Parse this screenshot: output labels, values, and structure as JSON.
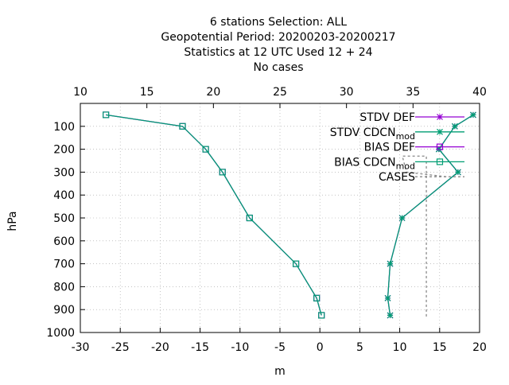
{
  "chart_data": {
    "type": "line",
    "title_lines": [
      "6 stations Selection: ALL",
      "Geopotential  Period: 20200203-20200217",
      "Statistics at 12 UTC  Used  12 + 24",
      "No cases"
    ],
    "xlabel": "m",
    "ylabel": "hPa",
    "x_bottom": {
      "lim": [
        -30,
        20
      ],
      "ticks": [
        -30,
        -25,
        -20,
        -15,
        -10,
        -5,
        0,
        5,
        10,
        15,
        20
      ]
    },
    "x_top": {
      "lim": [
        10,
        40
      ],
      "ticks": [
        10,
        15,
        20,
        25,
        30,
        35,
        40
      ]
    },
    "y": {
      "lim": [
        0,
        1000
      ],
      "reversed": true,
      "ticks": [
        100,
        200,
        300,
        400,
        500,
        600,
        700,
        800,
        900,
        1000
      ]
    },
    "grid": true,
    "legend_position": "top-right",
    "levels": [
      50,
      100,
      200,
      300,
      500,
      700,
      850,
      925
    ],
    "series": [
      {
        "name": "STDV DEF",
        "marker": "star",
        "color": "#9400d3",
        "values": [
          19.2,
          16.9,
          14.9,
          17.3,
          10.3,
          8.8,
          8.5,
          8.8
        ]
      },
      {
        "name": "STDV CDCN_mod",
        "marker": "star",
        "color": "#009e73",
        "values": [
          19.2,
          16.9,
          14.9,
          17.3,
          10.3,
          8.8,
          8.5,
          8.8
        ]
      },
      {
        "name": "BIAS DEF",
        "marker": "square",
        "color": "#9400d3",
        "values": [
          -26.8,
          -17.2,
          -14.3,
          -12.2,
          -8.8,
          -3.0,
          -0.4,
          0.2
        ]
      },
      {
        "name": "BIAS CDCN_mod",
        "marker": "square",
        "color": "#009e73",
        "values": [
          -26.8,
          -17.2,
          -14.3,
          -12.2,
          -8.8,
          -3.0,
          -0.4,
          0.2
        ]
      },
      {
        "name": "CASES",
        "axis": "top",
        "dashed": true,
        "color": "#888888",
        "points": [
          [
            37.5,
            320
          ],
          [
            34.5,
            300
          ],
          [
            34.2,
            230
          ],
          [
            36.0,
            230
          ],
          [
            36.0,
            930
          ]
        ]
      }
    ]
  }
}
